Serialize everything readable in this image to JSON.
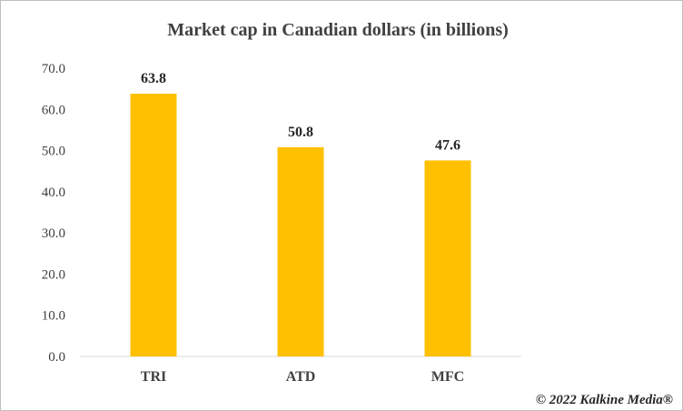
{
  "chart_data": {
    "type": "bar",
    "title": "Market cap in Canadian dollars (in billions)",
    "categories": [
      "TRI",
      "ATD",
      "MFC"
    ],
    "values": [
      63.8,
      50.8,
      47.6
    ],
    "data_labels": [
      "63.8",
      "50.8",
      "47.6"
    ],
    "yticks": [
      "0.0",
      "10.0",
      "20.0",
      "30.0",
      "40.0",
      "50.0",
      "60.0",
      "70.0"
    ],
    "ylim": [
      0,
      70
    ],
    "grid": false,
    "legend": "none",
    "bar_color": "#FFC000"
  },
  "watermark": "© 2022 Kalkine Media®"
}
